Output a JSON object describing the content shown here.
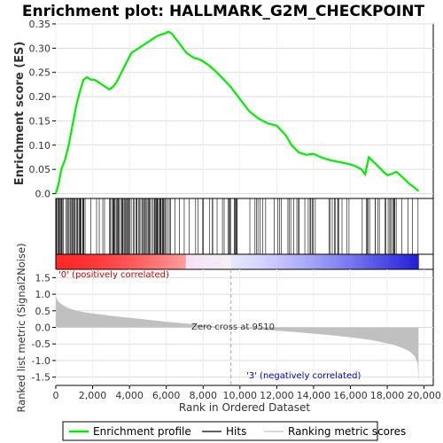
{
  "chart_data": {
    "type": "line",
    "title": "Enrichment plot: HALLMARK_G2M_CHECKPOINT",
    "xlabel": "Rank in Ordered Dataset",
    "ylabel_top": "Enrichment score (ES)",
    "ylabel_bottom": "Ranked list metric (Signal2Noise)",
    "xlim": [
      0,
      20500
    ],
    "x_ticks": [
      "0",
      "2,000",
      "4,000",
      "6,000",
      "8,000",
      "10,000",
      "12,000",
      "14,000",
      "16,000",
      "18,000",
      "20,000"
    ],
    "x_tick_values": [
      0,
      2000,
      4000,
      6000,
      8000,
      10000,
      12000,
      14000,
      16000,
      18000,
      20000
    ],
    "es_ylim": [
      -0.01,
      0.35
    ],
    "es_ticks": [
      "0.0",
      "0.05",
      "0.10",
      "0.15",
      "0.20",
      "0.25",
      "0.30",
      "0.35"
    ],
    "es_tick_values": [
      0,
      0.05,
      0.1,
      0.15,
      0.2,
      0.25,
      0.3,
      0.35
    ],
    "metric_ylim": [
      -1.75,
      1.75
    ],
    "metric_ticks": [
      "1.5",
      "1.0",
      "0.5",
      "0.0",
      "-0.5",
      "-1.0",
      "-1.5"
    ],
    "metric_tick_values": [
      1.5,
      1.0,
      0.5,
      0.0,
      -0.5,
      -1.0,
      -1.5
    ],
    "grid": true,
    "legend_position": "bottom",
    "legend": [
      {
        "name": "Enrichment profile",
        "color": "#00ee00"
      },
      {
        "name": "Hits",
        "color": "#000000"
      },
      {
        "name": "Ranking metric scores",
        "color": "#c0c0c0"
      }
    ],
    "es_curve": {
      "name": "Enrichment profile",
      "color": "#00ee00",
      "x": [
        0,
        150,
        300,
        500,
        700,
        900,
        1100,
        1300,
        1500,
        1700,
        1900,
        2100,
        2300,
        2500,
        2700,
        2900,
        3100,
        3300,
        3500,
        3700,
        3900,
        4100,
        4300,
        4500,
        4700,
        4900,
        5100,
        5300,
        5500,
        5700,
        5900,
        6100,
        6300,
        6500,
        6700,
        6900,
        7100,
        7300,
        7500,
        7700,
        7900,
        8100,
        8300,
        8600,
        9000,
        9500,
        10000,
        10500,
        11000,
        11500,
        12000,
        12500,
        12800,
        13200,
        13600,
        14000,
        14400,
        14800,
        15000,
        15400,
        15800,
        16200,
        16600,
        16800,
        17000,
        17400,
        17800,
        18000,
        18200,
        18500,
        18800,
        19200,
        19500,
        19700
      ],
      "y": [
        0.0,
        0.02,
        0.05,
        0.07,
        0.1,
        0.14,
        0.18,
        0.21,
        0.235,
        0.24,
        0.235,
        0.235,
        0.23,
        0.225,
        0.22,
        0.215,
        0.22,
        0.23,
        0.245,
        0.26,
        0.275,
        0.29,
        0.295,
        0.3,
        0.305,
        0.31,
        0.315,
        0.32,
        0.325,
        0.328,
        0.33,
        0.334,
        0.33,
        0.32,
        0.31,
        0.3,
        0.29,
        0.285,
        0.28,
        0.278,
        0.275,
        0.27,
        0.265,
        0.255,
        0.24,
        0.22,
        0.195,
        0.17,
        0.155,
        0.145,
        0.14,
        0.12,
        0.1,
        0.085,
        0.08,
        0.082,
        0.075,
        0.07,
        0.068,
        0.065,
        0.062,
        0.058,
        0.05,
        0.04,
        0.075,
        0.06,
        0.045,
        0.038,
        0.04,
        0.045,
        0.035,
        0.02,
        0.012,
        0.005
      ]
    },
    "metric_curve": {
      "name": "Ranking metric scores",
      "color": "#c0c0c0",
      "x": [
        0,
        100,
        300,
        600,
        1000,
        1500,
        2000,
        3000,
        4000,
        5000,
        6000,
        7000,
        7500,
        8000,
        9000,
        9510,
        10000,
        11000,
        12000,
        13000,
        14000,
        15000,
        16000,
        17000,
        17500,
        18000,
        18500,
        19000,
        19300,
        19500,
        19650,
        19700
      ],
      "y": [
        0.95,
        0.8,
        0.7,
        0.6,
        0.52,
        0.46,
        0.42,
        0.35,
        0.29,
        0.23,
        0.17,
        0.12,
        0.09,
        0.06,
        0.02,
        0.0,
        -0.02,
        -0.06,
        -0.1,
        -0.14,
        -0.19,
        -0.24,
        -0.3,
        -0.37,
        -0.42,
        -0.48,
        -0.55,
        -0.66,
        -0.76,
        -0.88,
        -1.1,
        -1.7
      ]
    },
    "hits_label": "Hits",
    "zero_cross_rank": 9510,
    "annotations": {
      "positive": "'0' (positively correlated)",
      "negative": "'3' (negatively correlated)",
      "zero_cross": "Zero cross at 9510"
    },
    "colors": {
      "positive_annotation": "#cc0000",
      "negative_annotation": "#0000cc",
      "heat_positive": "#ff0000",
      "heat_negative": "#0000cc"
    }
  }
}
